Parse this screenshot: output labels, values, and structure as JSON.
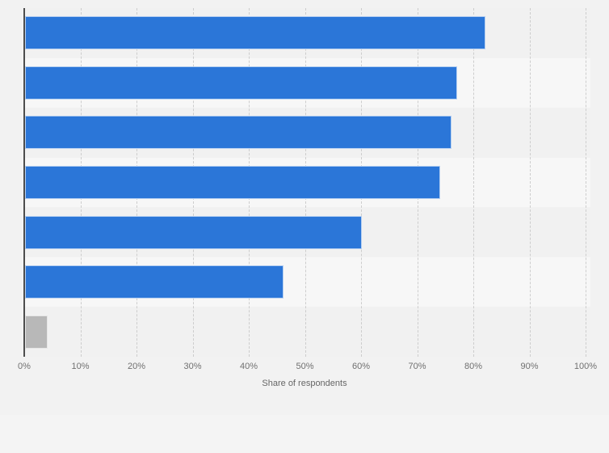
{
  "page": {
    "background_color": "#f2f2f2",
    "footer_color": "#f4f4f4"
  },
  "chart_data": {
    "type": "bar",
    "orientation": "horizontal",
    "title": "",
    "xlabel": "Share of respondents",
    "ylabel": "",
    "xlim": [
      0,
      100
    ],
    "x_tick_labels": [
      "0%",
      "10%",
      "20%",
      "30%",
      "40%",
      "50%",
      "60%",
      "70%",
      "80%",
      "90%",
      "100%"
    ],
    "values": [
      82,
      77,
      76,
      74,
      60,
      46,
      4
    ],
    "bar_colors": [
      "#2b76d8",
      "#2b76d8",
      "#2b76d8",
      "#2b76d8",
      "#2b76d8",
      "#2b76d8",
      "#b8b8b8"
    ],
    "grid": "vertical-dashed",
    "gridline_color": "#cdcdcd",
    "axis_line_color": "#4d4d4d",
    "legend": "none",
    "plot_band_colors": [
      "#f1f1f1",
      "#f7f7f7"
    ]
  }
}
